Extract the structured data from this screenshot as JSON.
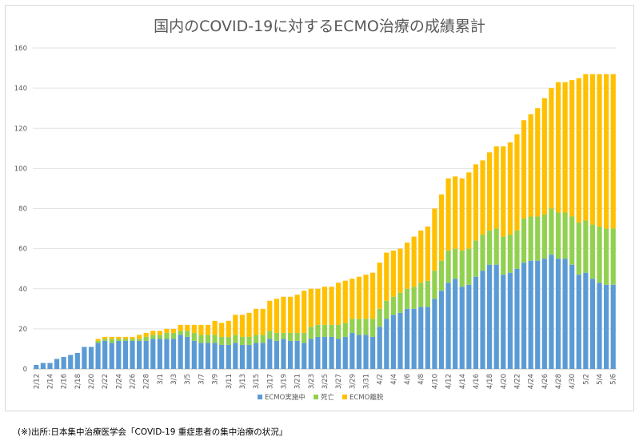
{
  "chart_data": {
    "type": "bar",
    "stacked": true,
    "title": "国内のCOVID-19に対するECMO治療の成績累計",
    "xlabel": "",
    "ylabel": "",
    "ylim": [
      0,
      160
    ],
    "yticks": [
      0,
      20,
      40,
      60,
      80,
      100,
      120,
      140,
      160
    ],
    "grid": true,
    "legend": "bottom",
    "categories": [
      "2/12",
      "2/13",
      "2/14",
      "2/15",
      "2/16",
      "2/17",
      "2/18",
      "2/19",
      "2/20",
      "2/21",
      "2/22",
      "2/23",
      "2/24",
      "2/25",
      "2/26",
      "2/27",
      "2/28",
      "2/29",
      "3/1",
      "3/2",
      "3/3",
      "3/4",
      "3/5",
      "3/6",
      "3/7",
      "3/8",
      "3/9",
      "3/10",
      "3/11",
      "3/12",
      "3/13",
      "3/14",
      "3/15",
      "3/16",
      "3/17",
      "3/18",
      "3/19",
      "3/20",
      "3/21",
      "3/22",
      "3/23",
      "3/24",
      "3/25",
      "3/26",
      "3/27",
      "3/28",
      "3/29",
      "3/30",
      "3/31",
      "4/1",
      "4/2",
      "4/3",
      "4/4",
      "4/5",
      "4/6",
      "4/7",
      "4/8",
      "4/9",
      "4/10",
      "4/11",
      "4/12",
      "4/13",
      "4/14",
      "4/15",
      "4/16",
      "4/17",
      "4/18",
      "4/19",
      "4/20",
      "4/21",
      "4/22",
      "4/23",
      "4/24",
      "4/25",
      "4/26",
      "4/27",
      "4/28",
      "4/29",
      "4/30",
      "5/1",
      "5/2",
      "5/3",
      "5/4",
      "5/5",
      "5/6"
    ],
    "series": [
      {
        "name": "ECMO実施中",
        "color": "#5b9bd5",
        "values": [
          2,
          3,
          3,
          5,
          6,
          7,
          8,
          11,
          11,
          13,
          14,
          13,
          14,
          14,
          14,
          14,
          14,
          15,
          15,
          15,
          15,
          17,
          16,
          14,
          13,
          13,
          13,
          12,
          12,
          13,
          12,
          12,
          13,
          13,
          15,
          14,
          15,
          14,
          14,
          13,
          15,
          16,
          16,
          16,
          15,
          16,
          18,
          17,
          17,
          16,
          21,
          25,
          27,
          28,
          30,
          30,
          31,
          31,
          35,
          39,
          43,
          45,
          41,
          42,
          46,
          49,
          52,
          52,
          47,
          48,
          50,
          53,
          54,
          54,
          55,
          57,
          55,
          55,
          52,
          47,
          48,
          45,
          43,
          42,
          42
        ]
      },
      {
        "name": "死亡",
        "color": "#92d050",
        "values": [
          0,
          0,
          0,
          0,
          0,
          0,
          0,
          0,
          0,
          1,
          1,
          2,
          1,
          1,
          1,
          1,
          2,
          2,
          2,
          3,
          3,
          2,
          3,
          4,
          4,
          4,
          4,
          4,
          4,
          4,
          4,
          4,
          4,
          4,
          4,
          4,
          3,
          4,
          4,
          5,
          6,
          6,
          6,
          6,
          7,
          7,
          7,
          8,
          8,
          9,
          9,
          9,
          9,
          10,
          10,
          11,
          12,
          13,
          14,
          15,
          16,
          15,
          18,
          18,
          18,
          18,
          17,
          18,
          19,
          19,
          19,
          22,
          22,
          22,
          22,
          23,
          23,
          23,
          24,
          26,
          26,
          27,
          28,
          28,
          28
        ]
      },
      {
        "name": "ECMO離脱",
        "color": "#ffc000",
        "values": [
          0,
          0,
          0,
          0,
          0,
          0,
          0,
          0,
          0,
          1,
          1,
          1,
          1,
          1,
          1,
          2,
          2,
          2,
          2,
          2,
          2,
          3,
          3,
          4,
          5,
          5,
          7,
          7,
          8,
          10,
          11,
          12,
          13,
          13,
          15,
          17,
          18,
          18,
          19,
          21,
          19,
          18,
          19,
          19,
          21,
          21,
          20,
          21,
          22,
          23,
          23,
          24,
          23,
          22,
          23,
          25,
          26,
          27,
          31,
          33,
          36,
          36,
          36,
          38,
          38,
          37,
          39,
          41,
          45,
          46,
          48,
          49,
          51,
          54,
          58,
          60,
          65,
          65,
          68,
          72,
          73,
          75,
          76,
          77,
          77
        ]
      }
    ]
  },
  "footer": {
    "source": "(※)出所:日本集中治療医学会「COVID-19 重症患者の集中治療の状況」"
  }
}
